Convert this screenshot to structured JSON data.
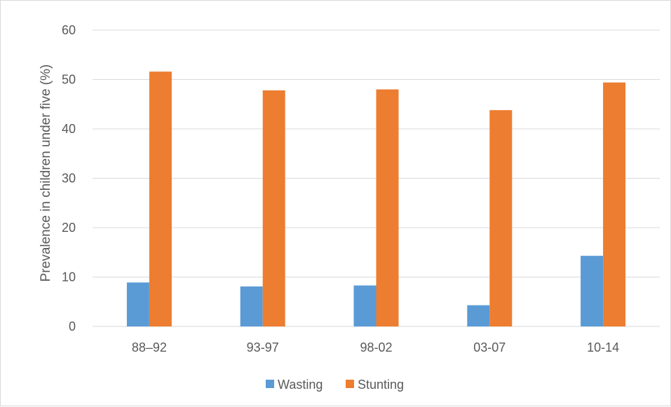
{
  "chart_data": {
    "type": "bar",
    "categories": [
      "88–92",
      "93-97",
      "98-02",
      "03-07",
      "10-14"
    ],
    "series": [
      {
        "name": "Wasting",
        "values": [
          8.9,
          8.1,
          8.3,
          4.3,
          14.3
        ],
        "color": "#5b9bd5"
      },
      {
        "name": "Stunting",
        "values": [
          51.6,
          47.8,
          48.0,
          43.8,
          49.4
        ],
        "color": "#ed7d31"
      }
    ],
    "title": "",
    "xlabel": "",
    "ylabel": "Prevalence in children under five (%)",
    "ylim": [
      0,
      60
    ],
    "yticks": [
      "0",
      "10",
      "20",
      "30",
      "40",
      "50",
      "60"
    ],
    "grid": true,
    "legend_position": "bottom",
    "gridline_color": "#d9d9d9"
  }
}
